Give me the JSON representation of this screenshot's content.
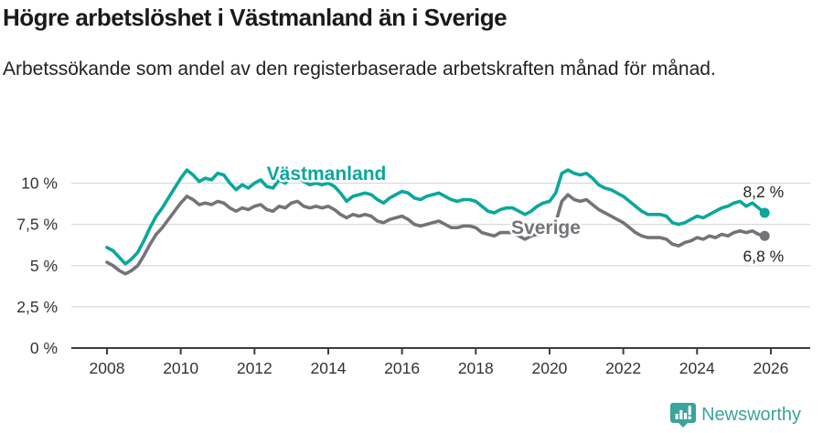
{
  "header": {
    "title": "Högre arbetslöshet i Västmanland än i Sverige",
    "subtitle": "Arbetssökande som andel av den registerbaserade arbetskraften månad för månad."
  },
  "chart_data": {
    "type": "line",
    "title": "Högre arbetslöshet i Västmanland än i Sverige",
    "subtitle": "Arbetssökande som andel av den registerbaserade arbetskraften månad för månad.",
    "unit": "%",
    "grid": true,
    "legend_position": "inline-labels",
    "xlim": [
      2007.8,
      2026.35
    ],
    "ylim": [
      0,
      11.6
    ],
    "x_ticks": [
      2008,
      2010,
      2012,
      2014,
      2016,
      2018,
      2020,
      2022,
      2024,
      2026
    ],
    "y_ticks": [
      {
        "value": 0,
        "label": "0 %"
      },
      {
        "value": 2.5,
        "label": "2,5 %"
      },
      {
        "value": 5,
        "label": "5 %"
      },
      {
        "value": 7.5,
        "label": "7,5 %"
      },
      {
        "value": 10,
        "label": "10 %"
      }
    ],
    "x": [
      2008.0,
      2008.167,
      2008.333,
      2008.5,
      2008.667,
      2008.833,
      2009.0,
      2009.167,
      2009.333,
      2009.5,
      2009.667,
      2009.833,
      2010.0,
      2010.167,
      2010.333,
      2010.5,
      2010.667,
      2010.833,
      2011.0,
      2011.167,
      2011.333,
      2011.5,
      2011.667,
      2011.833,
      2012.0,
      2012.167,
      2012.333,
      2012.5,
      2012.667,
      2012.833,
      2013.0,
      2013.167,
      2013.333,
      2013.5,
      2013.667,
      2013.833,
      2014.0,
      2014.167,
      2014.333,
      2014.5,
      2014.667,
      2014.833,
      2015.0,
      2015.167,
      2015.333,
      2015.5,
      2015.667,
      2015.833,
      2016.0,
      2016.167,
      2016.333,
      2016.5,
      2016.667,
      2016.833,
      2017.0,
      2017.167,
      2017.333,
      2017.5,
      2017.667,
      2017.833,
      2018.0,
      2018.167,
      2018.333,
      2018.5,
      2018.667,
      2018.833,
      2019.0,
      2019.167,
      2019.333,
      2019.5,
      2019.667,
      2019.833,
      2020.0,
      2020.167,
      2020.333,
      2020.5,
      2020.667,
      2020.833,
      2021.0,
      2021.167,
      2021.333,
      2021.5,
      2021.667,
      2021.833,
      2022.0,
      2022.167,
      2022.333,
      2022.5,
      2022.667,
      2022.833,
      2023.0,
      2023.167,
      2023.333,
      2023.5,
      2023.667,
      2023.833,
      2024.0,
      2024.167,
      2024.333,
      2024.5,
      2024.667,
      2024.833,
      2025.0,
      2025.167,
      2025.333,
      2025.5,
      2025.667,
      2025.833
    ],
    "series": [
      {
        "name": "Västmanland",
        "color": "#0aa79d",
        "end_label": "8,2 %",
        "end_value": 8.2,
        "values": [
          6.1,
          5.9,
          5.5,
          5.1,
          5.4,
          5.8,
          6.5,
          7.3,
          8.0,
          8.5,
          9.1,
          9.7,
          10.3,
          10.8,
          10.5,
          10.1,
          10.3,
          10.2,
          10.6,
          10.5,
          10.0,
          9.6,
          9.9,
          9.7,
          10.0,
          10.2,
          9.8,
          9.7,
          10.2,
          10.0,
          10.3,
          10.4,
          10.1,
          9.9,
          10.0,
          9.9,
          10.0,
          9.8,
          9.4,
          8.9,
          9.2,
          9.3,
          9.4,
          9.3,
          9.0,
          8.8,
          9.1,
          9.3,
          9.5,
          9.4,
          9.1,
          9.0,
          9.2,
          9.3,
          9.4,
          9.2,
          9.0,
          8.9,
          9.0,
          9.0,
          8.9,
          8.6,
          8.3,
          8.2,
          8.4,
          8.5,
          8.5,
          8.3,
          8.1,
          8.3,
          8.6,
          8.8,
          8.9,
          9.4,
          10.6,
          10.8,
          10.6,
          10.5,
          10.6,
          10.3,
          9.9,
          9.7,
          9.6,
          9.4,
          9.2,
          8.9,
          8.6,
          8.3,
          8.1,
          8.1,
          8.1,
          8.0,
          7.6,
          7.5,
          7.6,
          7.8,
          8.0,
          7.9,
          8.1,
          8.3,
          8.5,
          8.6,
          8.8,
          8.9,
          8.6,
          8.8,
          8.5,
          8.2
        ]
      },
      {
        "name": "Sverige",
        "color": "#757379",
        "end_label": "6,8 %",
        "end_value": 6.8,
        "values": [
          5.2,
          5.0,
          4.7,
          4.5,
          4.7,
          5.0,
          5.6,
          6.3,
          6.9,
          7.3,
          7.8,
          8.3,
          8.8,
          9.2,
          9.0,
          8.7,
          8.8,
          8.7,
          8.9,
          8.8,
          8.5,
          8.3,
          8.5,
          8.4,
          8.6,
          8.7,
          8.4,
          8.3,
          8.6,
          8.5,
          8.8,
          8.9,
          8.6,
          8.5,
          8.6,
          8.5,
          8.6,
          8.4,
          8.1,
          7.9,
          8.1,
          8.0,
          8.1,
          8.0,
          7.7,
          7.6,
          7.8,
          7.9,
          8.0,
          7.8,
          7.5,
          7.4,
          7.5,
          7.6,
          7.7,
          7.5,
          7.3,
          7.3,
          7.4,
          7.4,
          7.3,
          7.0,
          6.9,
          6.8,
          7.0,
          7.0,
          7.0,
          6.8,
          6.6,
          6.8,
          6.9,
          7.0,
          7.1,
          7.6,
          8.9,
          9.3,
          9.0,
          8.9,
          9.0,
          8.7,
          8.4,
          8.2,
          8.0,
          7.8,
          7.6,
          7.3,
          7.0,
          6.8,
          6.7,
          6.7,
          6.7,
          6.6,
          6.3,
          6.2,
          6.4,
          6.5,
          6.7,
          6.6,
          6.8,
          6.7,
          6.9,
          6.8,
          7.0,
          7.1,
          7.0,
          7.1,
          6.9,
          6.8
        ]
      }
    ]
  },
  "colors": {
    "accent_teal": "#0aa79d",
    "series_gray": "#757379",
    "grid": "#dadada",
    "axis": "#3d3d3d",
    "text": "#333333",
    "brand": "#3ba49c"
  },
  "footer": {
    "brand": "Newsworthy",
    "logo_icon": "bar-chart-speech-bubble"
  }
}
